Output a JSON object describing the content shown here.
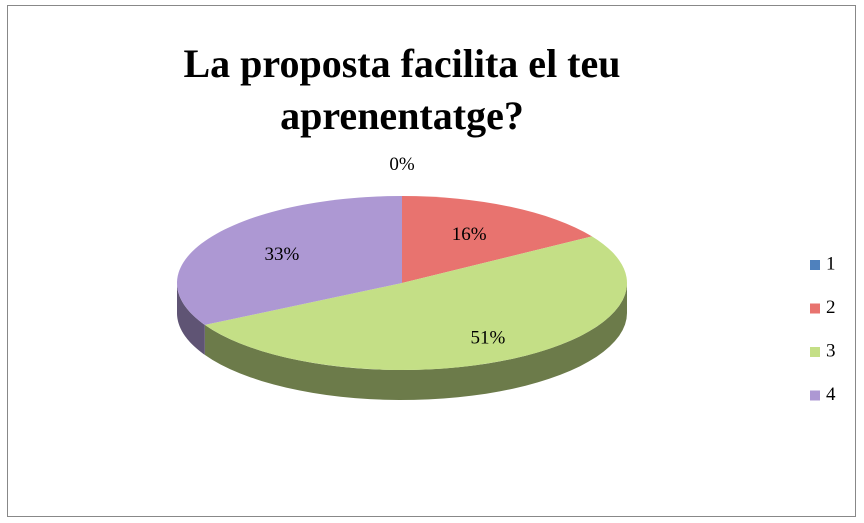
{
  "chart_data": {
    "type": "pie",
    "title": "La proposta facilita el teu aprenentatge?",
    "categories": [
      "1",
      "2",
      "3",
      "4"
    ],
    "values": [
      0,
      16,
      51,
      33
    ],
    "value_labels": [
      "0%",
      "16%",
      "51%",
      "33%"
    ],
    "colors": [
      "#4f81bd",
      "#e8736f",
      "#c4df86",
      "#ad98d3"
    ],
    "legend": "right"
  }
}
